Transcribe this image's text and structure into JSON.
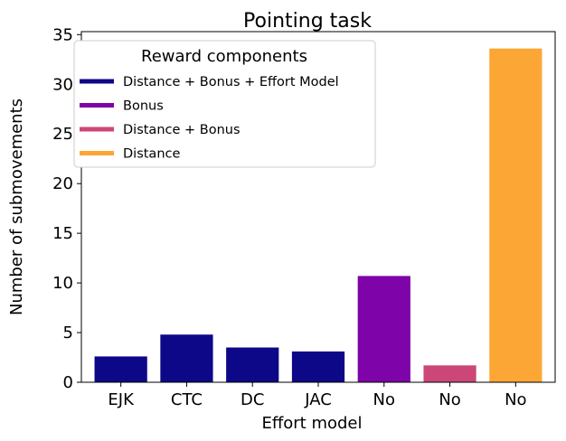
{
  "chart_data": {
    "type": "bar",
    "title": "Pointing task",
    "xlabel": "Effort model",
    "ylabel": "Number of submovements",
    "categories": [
      "EJK",
      "CTC",
      "DC",
      "JAC",
      "No",
      "No",
      "No"
    ],
    "values": [
      2.6,
      4.8,
      3.5,
      3.1,
      10.7,
      1.7,
      33.6
    ],
    "bar_groups": [
      0,
      0,
      0,
      0,
      1,
      2,
      3
    ],
    "ylim": [
      0,
      35.3
    ],
    "yticks": [
      0,
      5,
      10,
      15,
      20,
      25,
      30,
      35
    ],
    "grid": false,
    "legend": {
      "title": "Reward components",
      "placement": "top-left",
      "entries": [
        {
          "label": "Distance + Bonus + Effort Model",
          "color": "#0d0887"
        },
        {
          "label": "Bonus",
          "color": "#7e03a8"
        },
        {
          "label": "Distance + Bonus",
          "color": "#cc4778"
        },
        {
          "label": "Distance",
          "color": "#fca636"
        }
      ]
    }
  }
}
